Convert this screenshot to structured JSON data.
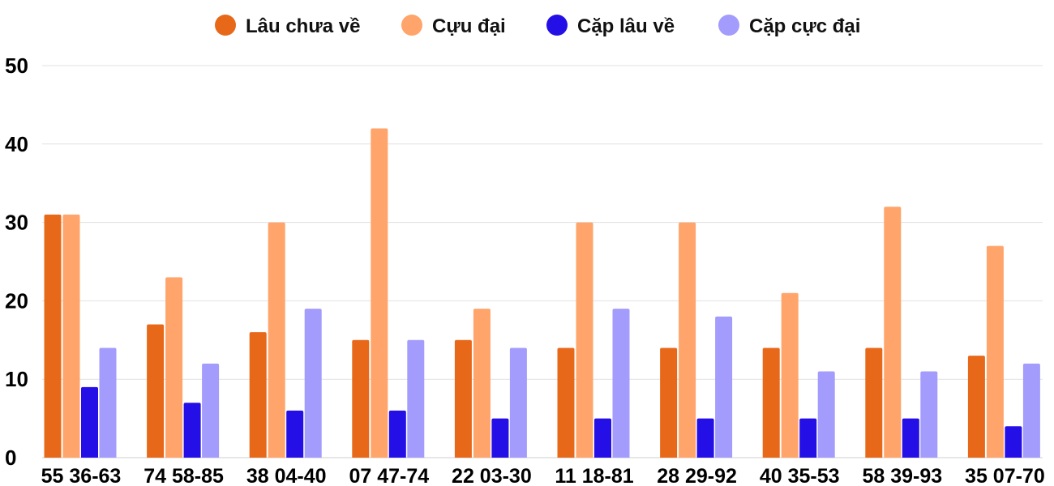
{
  "chart_data": {
    "type": "bar",
    "categories": [
      "55 36-63",
      "74 58-85",
      "38 04-40",
      "07 47-74",
      "22 03-30",
      "11 18-81",
      "28 29-92",
      "40 35-53",
      "58 39-93",
      "35 07-70"
    ],
    "series": [
      {
        "name": "Lâu chưa về",
        "color": "#e8681a",
        "values": [
          31,
          17,
          16,
          15,
          15,
          14,
          14,
          14,
          14,
          13
        ]
      },
      {
        "name": "Cựu đại",
        "color": "#ffa46a",
        "values": [
          31,
          23,
          30,
          42,
          19,
          30,
          30,
          21,
          32,
          27
        ]
      },
      {
        "name": "Cặp lâu về",
        "color": "#2410e6",
        "values": [
          9,
          7,
          6,
          6,
          5,
          5,
          5,
          5,
          5,
          4
        ]
      },
      {
        "name": "Cặp cực đại",
        "color": "#a39cfc",
        "values": [
          14,
          12,
          19,
          15,
          14,
          19,
          18,
          11,
          11,
          12
        ]
      }
    ],
    "ylim": [
      0,
      50
    ],
    "yticks": [
      0,
      10,
      20,
      30,
      40,
      50
    ],
    "grid": true,
    "legend_position": "top-center"
  }
}
